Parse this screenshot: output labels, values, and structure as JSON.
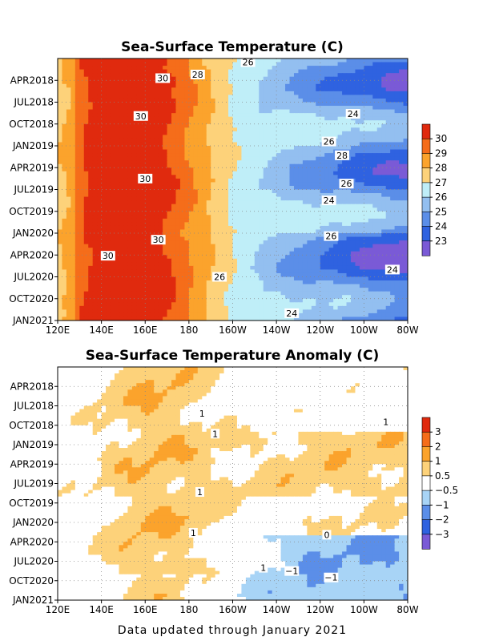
{
  "footer": "Data updated through January 2021",
  "chart_data": [
    {
      "type": "heatmap",
      "title": "Sea-Surface Temperature (C)",
      "x_tick_labels": [
        "120E",
        "140E",
        "160E",
        "180",
        "160W",
        "140W",
        "120W",
        "100W",
        "80W"
      ],
      "y_tick_labels": [
        "APR2018",
        "JUL2018",
        "OCT2018",
        "JAN2019",
        "APR2019",
        "JUL2019",
        "OCT2019",
        "JAN2020",
        "APR2020",
        "JUL2020",
        "OCT2020",
        "JAN2021"
      ],
      "levels": [
        23,
        24,
        25,
        26,
        27,
        28,
        29,
        30
      ],
      "colorbar_labels": [
        "30",
        "29",
        "28",
        "27",
        "26",
        "25",
        "24",
        "23"
      ],
      "colors": [
        "#7a5ad6",
        "#2f62e0",
        "#5b8ee8",
        "#93bff0",
        "#bfeef8",
        "#fdd27a",
        "#fba32c",
        "#f56d1a",
        "#e02a0e"
      ],
      "contour_labels": [
        {
          "text": "26",
          "lon": -153,
          "t": 0.5
        },
        {
          "text": "28",
          "lon": -176,
          "t": 2.2
        },
        {
          "text": "30",
          "lon": 168,
          "t": 2.7
        },
        {
          "text": "30",
          "lon": 158,
          "t": 7.9
        },
        {
          "text": "24",
          "lon": -105,
          "t": 7.6
        },
        {
          "text": "26",
          "lon": -116,
          "t": 11.4
        },
        {
          "text": "28",
          "lon": -110,
          "t": 13.3
        },
        {
          "text": "30",
          "lon": 160,
          "t": 16.5
        },
        {
          "text": "26",
          "lon": -108,
          "t": 17.2
        },
        {
          "text": "24",
          "lon": -116,
          "t": 19.5
        },
        {
          "text": "30",
          "lon": 166,
          "t": 24.9
        },
        {
          "text": "26",
          "lon": -115,
          "t": 24.4
        },
        {
          "text": "30",
          "lon": 143,
          "t": 27.1
        },
        {
          "text": "24",
          "lon": -87,
          "t": 29.0
        },
        {
          "text": "26",
          "lon": -166,
          "t": 30.0
        },
        {
          "text": "24",
          "lon": -133,
          "t": 35.0
        }
      ]
    },
    {
      "type": "heatmap",
      "title": "Sea-Surface Temperature Anomaly (C)",
      "x_tick_labels": [
        "120E",
        "140E",
        "160E",
        "180",
        "160W",
        "140W",
        "120W",
        "100W",
        "80W"
      ],
      "y_tick_labels": [
        "APR2018",
        "JUL2018",
        "OCT2018",
        "JAN2019",
        "APR2019",
        "JUL2019",
        "OCT2019",
        "JAN2020",
        "APR2020",
        "JUL2020",
        "OCT2020",
        "JAN2021"
      ],
      "levels": [
        -3,
        -2,
        -1,
        -0.5,
        0.5,
        1,
        2,
        3
      ],
      "colorbar_labels": [
        "3",
        "2",
        "1",
        "0.5",
        "−0.5",
        "−1",
        "−2",
        "−3"
      ],
      "colors": [
        "#7a5ad6",
        "#2f62e0",
        "#5b8ee8",
        "#a8d4f6",
        "#ffffff",
        "#fdd27a",
        "#fba32c",
        "#f56d1a",
        "#e02a0e"
      ],
      "contour_labels": [
        {
          "text": "1",
          "lon": -174,
          "t": 7.2
        },
        {
          "text": "1",
          "lon": -90,
          "t": 8.5
        },
        {
          "text": "1",
          "lon": -168,
          "t": 10.3
        },
        {
          "text": "1",
          "lon": -175,
          "t": 19.3
        },
        {
          "text": "1",
          "lon": -178,
          "t": 25.6
        },
        {
          "text": "0",
          "lon": -117,
          "t": 25.9
        },
        {
          "text": "1",
          "lon": -146,
          "t": 31.0
        },
        {
          "text": "−1",
          "lon": -133,
          "t": 31.5
        },
        {
          "text": "−1",
          "lon": -115,
          "t": 32.5
        }
      ]
    }
  ]
}
